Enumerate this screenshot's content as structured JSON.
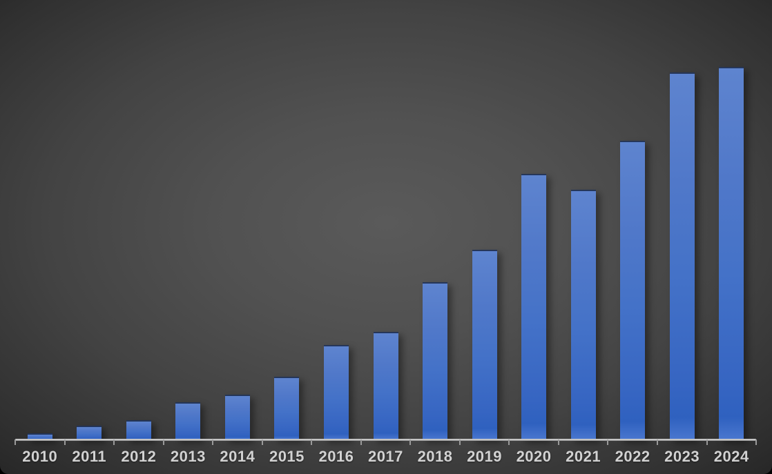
{
  "chart_data": {
    "type": "bar",
    "title": "",
    "xlabel": "",
    "ylabel": "",
    "categories": [
      "2010",
      "2011",
      "2012",
      "2013",
      "2014",
      "2015",
      "2016",
      "2017",
      "2018",
      "2019",
      "2020",
      "2021",
      "2022",
      "2023",
      "2024"
    ],
    "values": [
      1.7,
      3.7,
      5.2,
      10.0,
      12.0,
      16.9,
      25.4,
      28.9,
      42.2,
      50.9,
      71.3,
      67.0,
      80.2,
      98.5,
      100.0
    ],
    "value_scale": "relative percent of tallest (2024) bar; no value axis or data labels shown",
    "ylim": [
      0,
      100
    ],
    "grid": false,
    "legend": "none",
    "colors": {
      "bar_top": "#5e84cf",
      "bar_mid": "#4472c8",
      "bar_bottom": "#3061bf",
      "axis_line": "#b5b5b5",
      "tick_mark": "#9a9a9a",
      "label_text": "#d2d2d2",
      "background_center": "#5a5a5a",
      "background_edge": "#1c1c1c"
    }
  }
}
